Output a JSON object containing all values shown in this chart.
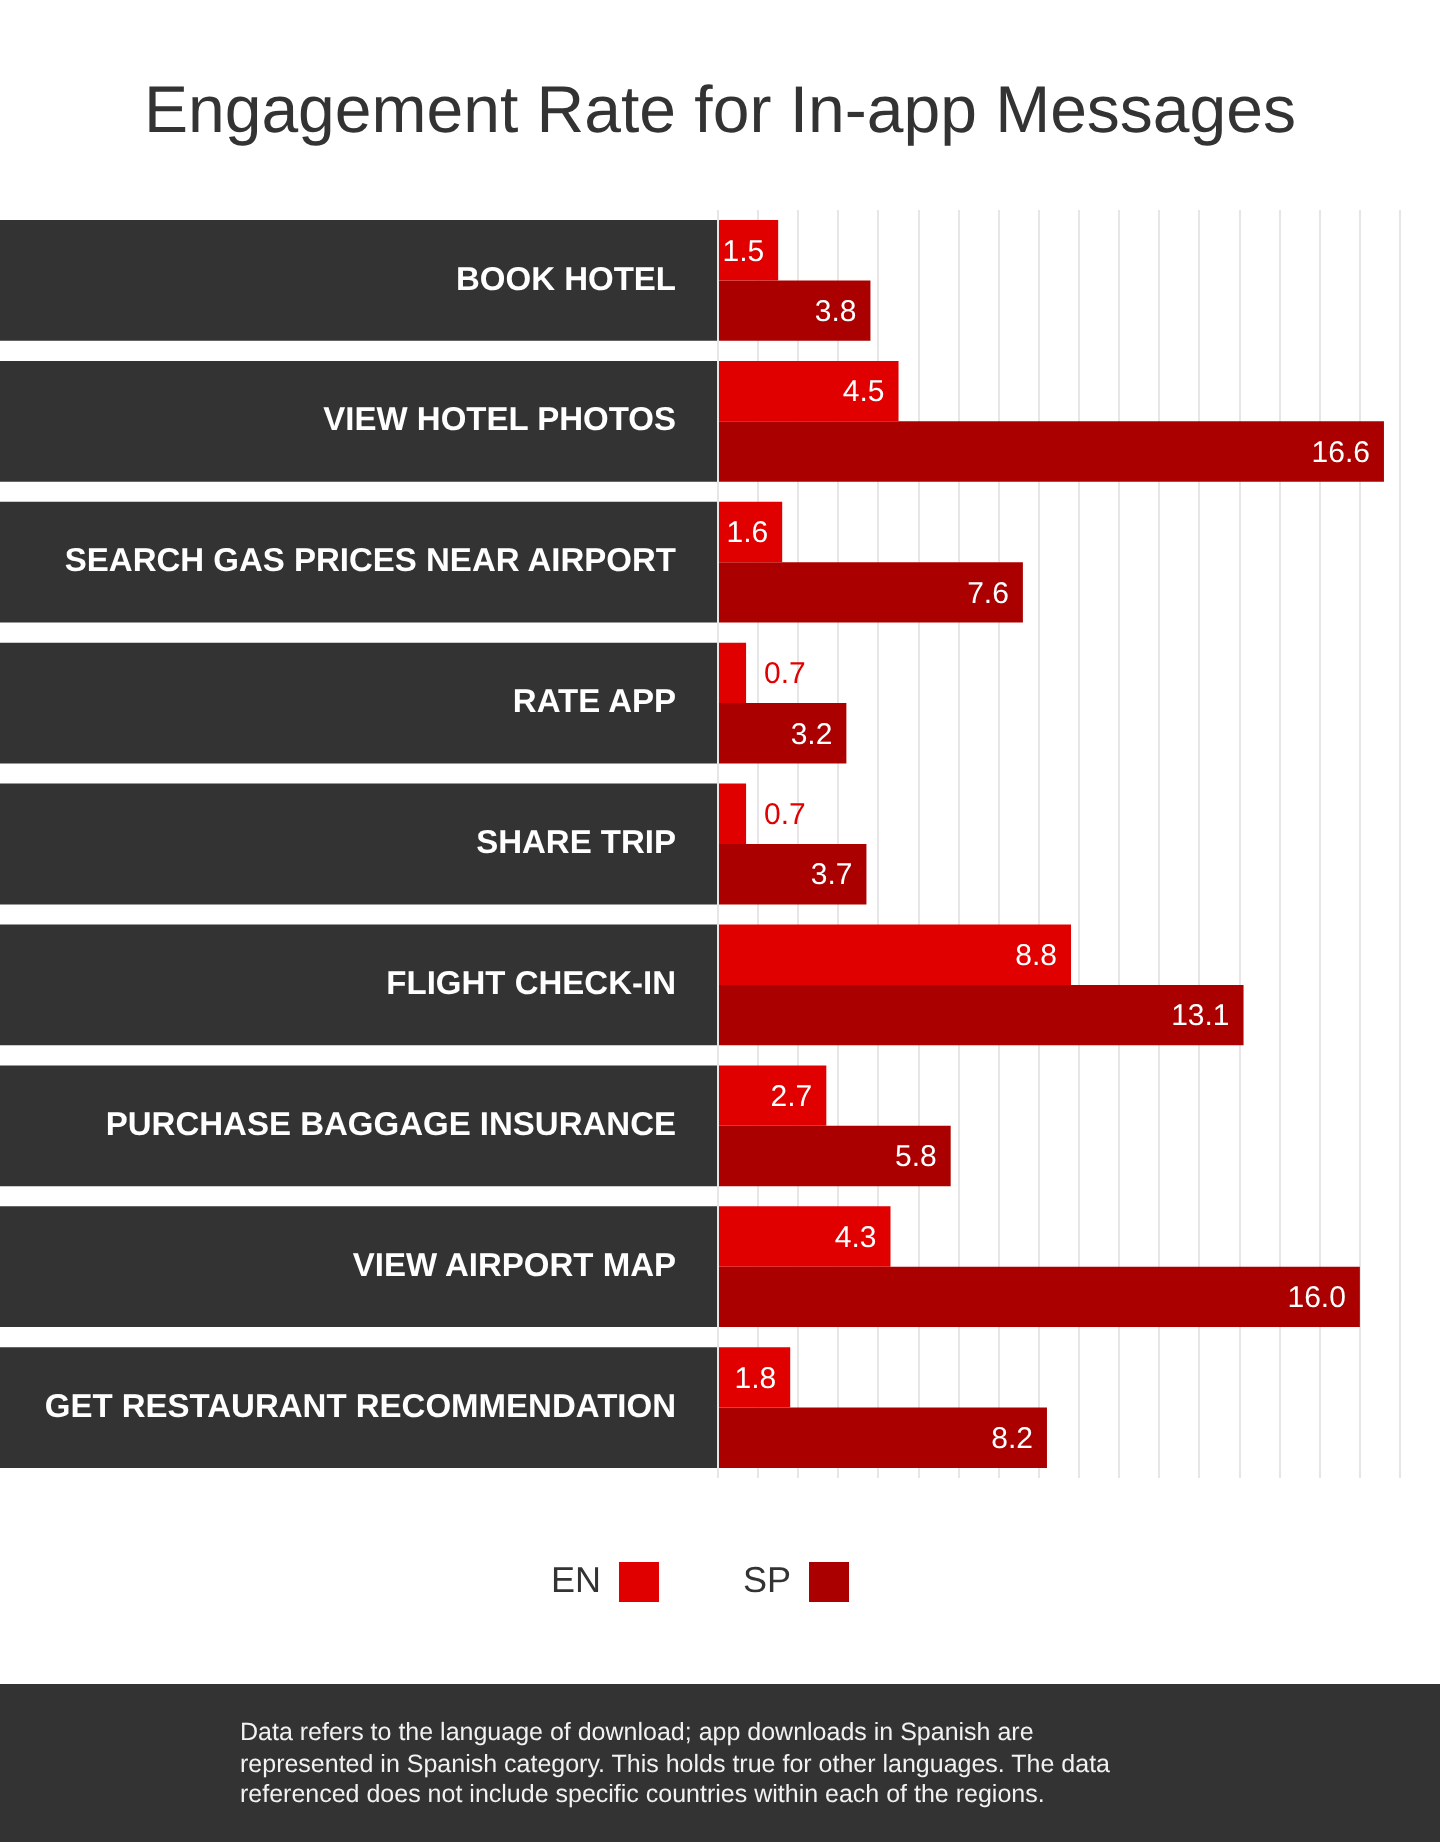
{
  "chart_data": {
    "type": "bar",
    "orientation": "horizontal",
    "title": "Engagement Rate for In-app Messages",
    "categories": [
      "BOOK HOTEL",
      "VIEW HOTEL PHOTOS",
      "SEARCH GAS PRICES NEAR AIRPORT",
      "RATE APP",
      "SHARE TRIP",
      "FLIGHT CHECK-IN",
      "PURCHASE BAGGAGE INSURANCE",
      "VIEW AIRPORT MAP",
      "GET RESTAURANT RECOMMENDATION"
    ],
    "series": [
      {
        "name": "EN",
        "color": "#e10000",
        "values": [
          1.5,
          4.5,
          1.6,
          0.7,
          0.7,
          8.8,
          2.7,
          4.3,
          1.8
        ],
        "value_labels": [
          "1.5",
          "4.5",
          "1.6",
          "0.7",
          "0.7",
          "8.8",
          "2.7",
          "4.3",
          "1.8"
        ]
      },
      {
        "name": "SP",
        "color": "#ab0000",
        "values": [
          3.8,
          16.6,
          7.6,
          3.2,
          3.7,
          13.1,
          5.8,
          16.0,
          8.2
        ],
        "value_labels": [
          "3.8",
          "16.6",
          "7.6",
          "3.2",
          "3.7",
          "13.1",
          "5.8",
          "16.0",
          "8.2"
        ]
      }
    ],
    "xlim": [
      0,
      17
    ],
    "xticks": [
      {
        "value": 0,
        "label": null
      },
      {
        "value": 1,
        "label": null
      },
      {
        "value": 2,
        "label": null
      },
      {
        "value": 3,
        "label": null
      },
      {
        "value": 4,
        "label": null
      },
      {
        "value": 5,
        "label": null
      },
      {
        "value": 6,
        "label": null
      },
      {
        "value": 7,
        "label": null
      },
      {
        "value": 8,
        "label": null
      },
      {
        "value": 9,
        "label": null
      },
      {
        "value": 10,
        "label": null
      },
      {
        "value": 11,
        "label": null
      },
      {
        "value": 12,
        "label": null
      },
      {
        "value": 13,
        "label": null
      },
      {
        "value": 14,
        "label": null
      },
      {
        "value": 15,
        "label": null
      },
      {
        "value": 16,
        "label": null
      },
      {
        "value": 17,
        "label": null
      }
    ],
    "grid": "x",
    "tick_labels": "y",
    "legend": "bottom",
    "annotations": [
      "Data refers to the language of download; app downloads in Spanish are represented in Spanish category. This holds true for other languages. The data referenced does not include specific countries within each of the regions."
    ]
  }
}
